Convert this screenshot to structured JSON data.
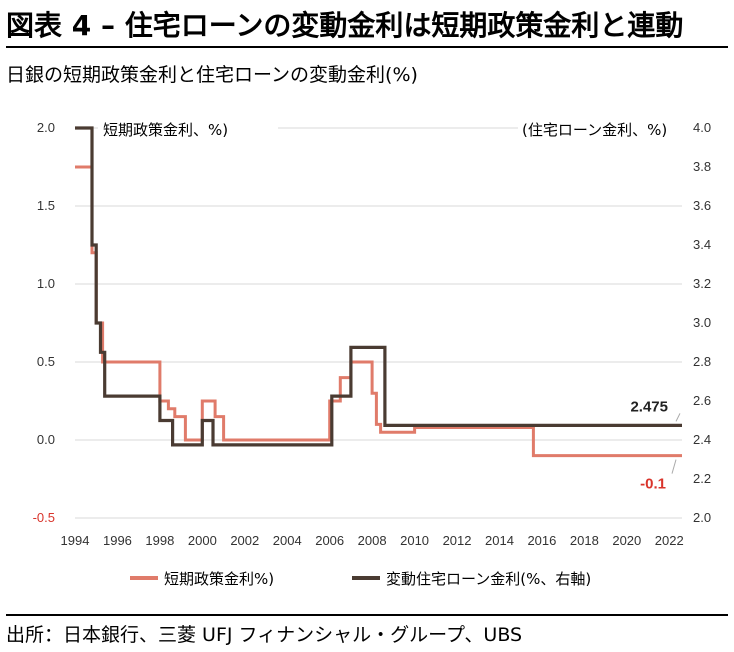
{
  "title": "図表 4 – 住宅ローンの変動金利は短期政策金利と連動",
  "subtitle": "日銀の短期政策金利と住宅ローンの変動金利(%)",
  "source": "出所：日本銀行、三菱 UFJ フィナンシャル・グループ、UBS",
  "chart_data": {
    "type": "line",
    "left_axis": {
      "label": "短期政策金利、%)",
      "ylim": [
        -0.5,
        2.0
      ],
      "ticks": [
        "2.0",
        "1.5",
        "1.0",
        "0.5",
        "0.0",
        "-0.5"
      ]
    },
    "right_axis": {
      "label": "(住宅ローン金利、%)",
      "ylim": [
        2.0,
        4.0
      ],
      "ticks": [
        "4.0",
        "3.8",
        "3.6",
        "3.4",
        "3.2",
        "3.0",
        "2.8",
        "2.6",
        "2.4",
        "2.2",
        "2.0"
      ]
    },
    "xlim": [
      1994,
      2022.6
    ],
    "x_ticks": [
      "1994",
      "1996",
      "1998",
      "2000",
      "2002",
      "2004",
      "2006",
      "2008",
      "2010",
      "2012",
      "2014",
      "2016",
      "2018",
      "2020",
      "2022"
    ],
    "grid": "horizontal",
    "legend_position": "bottom",
    "series": [
      {
        "name": "短期政策金利%)",
        "axis": "left",
        "color": "#e07b6a",
        "x": [
          1994.0,
          1994.8,
          1994.8,
          1995.0,
          1995.0,
          1995.3,
          1995.3,
          1998.0,
          1998.0,
          1998.4,
          1998.4,
          1998.7,
          1998.7,
          1999.2,
          1999.2,
          2000.0,
          2000.0,
          2000.6,
          2000.6,
          2001.0,
          2001.0,
          2006.0,
          2006.0,
          2006.5,
          2006.5,
          2007.0,
          2007.0,
          2008.0,
          2008.0,
          2008.2,
          2008.2,
          2008.4,
          2008.4,
          2010.0,
          2010.0,
          2015.6,
          2015.6,
          2022.6
        ],
        "values": [
          1.75,
          1.75,
          1.2,
          1.2,
          0.75,
          0.75,
          0.5,
          0.5,
          0.25,
          0.25,
          0.2,
          0.2,
          0.15,
          0.15,
          0.0,
          0.0,
          0.25,
          0.25,
          0.15,
          0.15,
          0.0,
          0.0,
          0.25,
          0.25,
          0.4,
          0.4,
          0.5,
          0.5,
          0.3,
          0.3,
          0.1,
          0.1,
          0.05,
          0.05,
          0.08,
          0.08,
          -0.1,
          -0.1
        ]
      },
      {
        "name": "変動住宅ローン金利(%、右軸)",
        "axis": "right",
        "color": "#4a3b32",
        "x": [
          1994.0,
          1994.8,
          1994.8,
          1995.0,
          1995.0,
          1995.2,
          1995.2,
          1995.4,
          1995.4,
          1998.0,
          1998.0,
          1998.6,
          1998.6,
          2000.0,
          2000.0,
          2000.5,
          2000.5,
          2001.0,
          2001.0,
          2006.1,
          2006.1,
          2006.5,
          2006.5,
          2007.0,
          2007.0,
          2008.0,
          2008.0,
          2008.6,
          2008.6,
          2022.6
        ],
        "values": [
          4.0,
          4.0,
          3.4,
          3.4,
          3.0,
          3.0,
          2.85,
          2.85,
          2.625,
          2.625,
          2.5,
          2.5,
          2.375,
          2.375,
          2.5,
          2.5,
          2.375,
          2.375,
          2.375,
          2.375,
          2.625,
          2.625,
          2.625,
          2.625,
          2.875,
          2.875,
          2.875,
          2.875,
          2.475,
          2.475
        ]
      }
    ],
    "annotations": [
      {
        "text": "2.475",
        "x": 2022.6,
        "y": 2.475,
        "axis": "right",
        "color": "#222222"
      },
      {
        "text": "-0.1",
        "x": 2022.6,
        "y": -0.1,
        "axis": "left",
        "color": "#d9342b"
      }
    ]
  }
}
